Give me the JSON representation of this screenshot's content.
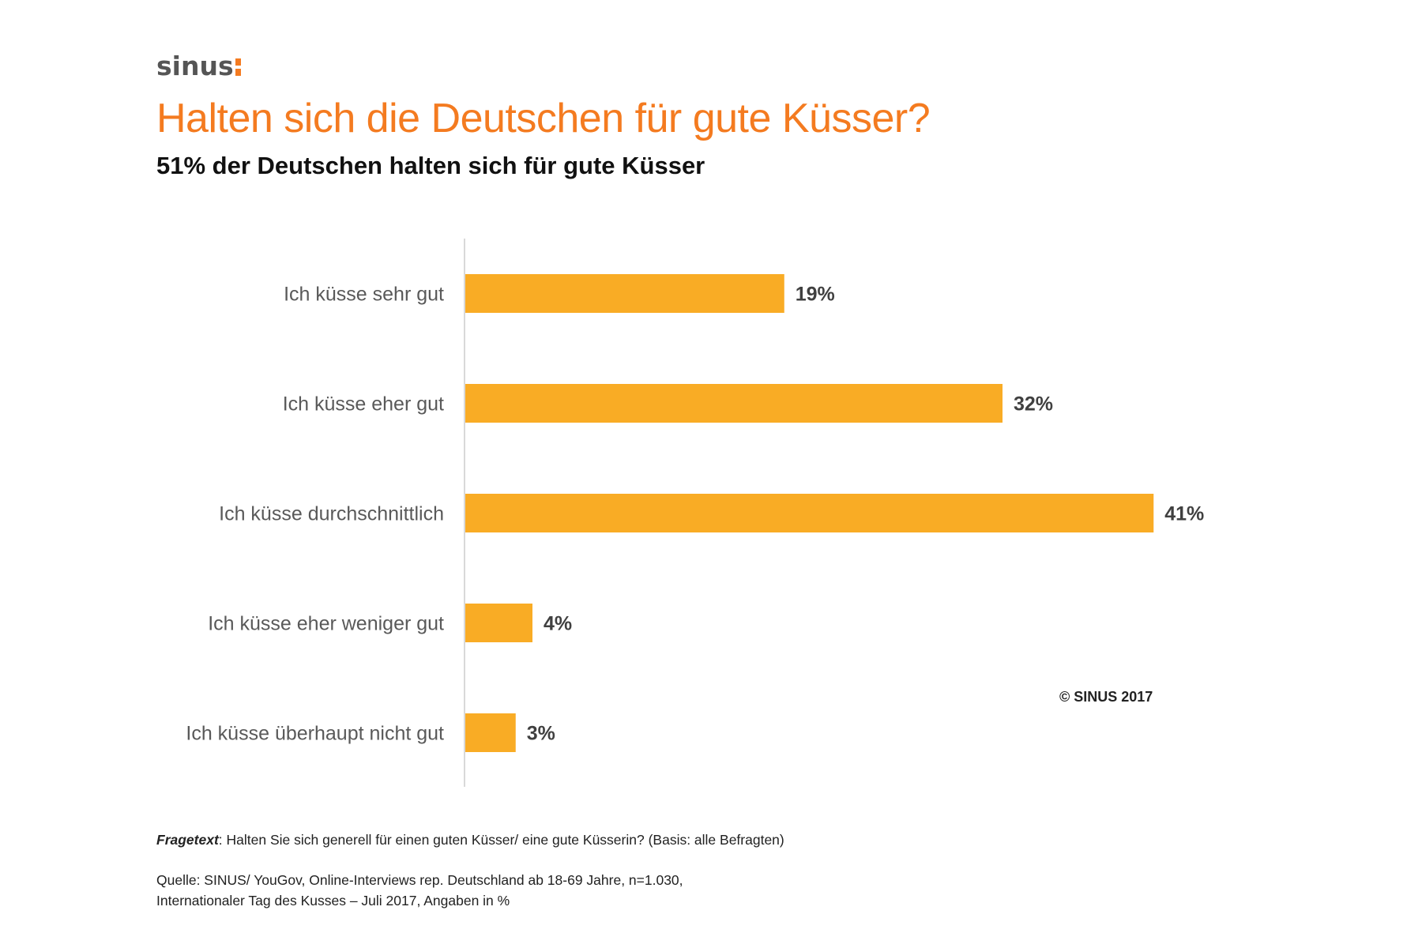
{
  "brand": {
    "logo_text": "sinus",
    "accent_color": "#F47B20",
    "logo_mark_icon": "colon-mark-icon"
  },
  "header": {
    "title": "Halten sich die Deutschen für gute Küsser?",
    "subtitle": "51% der Deutschen halten sich für gute Küsser"
  },
  "chart_data": {
    "type": "bar",
    "orientation": "horizontal",
    "title": "Halten sich die Deutschen für gute Küsser?",
    "subtitle": "51% der Deutschen halten sich für gute Küsser",
    "xlabel": "",
    "ylabel": "",
    "unit": "%",
    "categories": [
      "Ich küsse sehr gut",
      "Ich küsse eher gut",
      "Ich küsse durchschnittlich",
      "Ich küsse eher weniger gut",
      "Ich küsse überhaupt nicht gut"
    ],
    "values": [
      19,
      32,
      41,
      4,
      3
    ],
    "data_labels": [
      "19%",
      "32%",
      "41%",
      "4%",
      "3%"
    ],
    "xlim": [
      0,
      45
    ],
    "grid": false,
    "legend": "none",
    "bar_color": "#F9AC25",
    "axis_color": "#D9D9D9"
  },
  "annotations": {
    "copyright": "© SINUS 2017"
  },
  "footer": {
    "question_label": "Fragetext",
    "question_text": ": Halten Sie sich generell für einen guten Küsser/ eine gute Küsserin? (Basis: alle Befragten)",
    "source_line1": "Quelle: SINUS/ YouGov, Online-Interviews rep. Deutschland ab 18-69 Jahre, n=1.030,",
    "source_line2": "Internationaler Tag des Kusses – Juli 2017, Angaben in %"
  }
}
